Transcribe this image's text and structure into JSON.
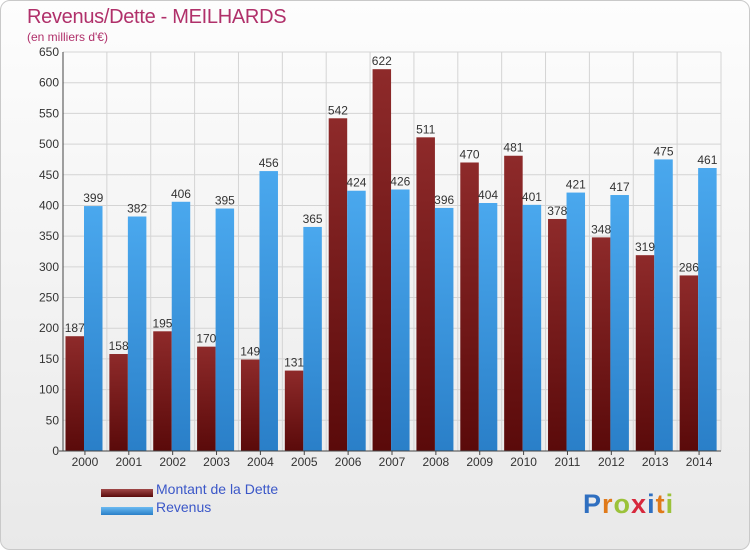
{
  "title": "Revenus/Dette - MEILHARDS",
  "subtitle": "(en milliers d'€)",
  "logo": {
    "text": "Proxiti",
    "colors": [
      "#2f6fc0",
      "#e07a1a",
      "#9bc23a",
      "#d7283c",
      "#2f6fc0",
      "#e07a1a",
      "#9bc23a"
    ]
  },
  "legend": [
    {
      "label": "Montant de la Dette",
      "color": "#8b1c1c"
    },
    {
      "label": "Revenus",
      "color": "#3d9de6"
    }
  ],
  "chart_data": {
    "type": "bar",
    "title": "Revenus/Dette - MEILHARDS",
    "ylabel": "(en milliers d'€)",
    "xlabel": "",
    "ylim": [
      0,
      650
    ],
    "yticks": [
      0,
      50,
      100,
      150,
      200,
      250,
      300,
      350,
      400,
      450,
      500,
      550,
      600,
      650
    ],
    "grid": true,
    "legend_position": "bottom-left",
    "categories": [
      "2000",
      "2001",
      "2002",
      "2003",
      "2004",
      "2005",
      "2006",
      "2007",
      "2008",
      "2009",
      "2010",
      "2011",
      "2012",
      "2013",
      "2014"
    ],
    "series": [
      {
        "name": "Montant de la Dette",
        "color": "#8b1c1c",
        "values": [
          187,
          158,
          195,
          170,
          149,
          131,
          542,
          622,
          511,
          470,
          481,
          378,
          348,
          319,
          286
        ]
      },
      {
        "name": "Revenus",
        "color": "#3d9de6",
        "values": [
          399,
          382,
          406,
          395,
          456,
          365,
          424,
          426,
          396,
          404,
          401,
          421,
          417,
          475,
          461
        ]
      }
    ]
  }
}
